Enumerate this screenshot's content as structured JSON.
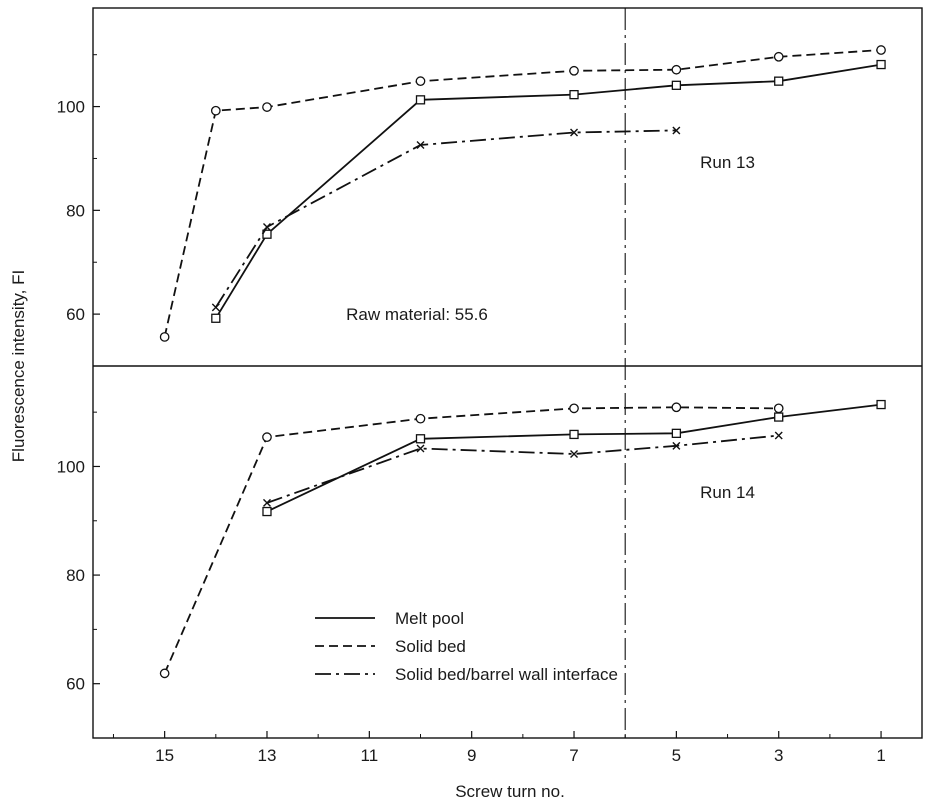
{
  "chart_data": {
    "type": "line",
    "xlabel": "Screw turn no.",
    "ylabel": "Fluorescence intensity, FI",
    "x_reversed": true,
    "xlim": [
      16.4,
      0.2
    ],
    "x_ticks": [
      15,
      13,
      11,
      9,
      7,
      5,
      3,
      1
    ],
    "divider_x": 6,
    "panels": [
      {
        "label": "Run 13",
        "annotation": "Raw material: 55.6",
        "ylim": [
          50,
          119
        ],
        "y_ticks": [
          60,
          80,
          100
        ],
        "series": [
          {
            "legend": "Solid bed",
            "style": "dashed",
            "marker": "circle",
            "points": [
              [
                15,
                55.6
              ],
              [
                14,
                99.2
              ],
              [
                13,
                99.9
              ],
              [
                10,
                104.9
              ],
              [
                7,
                106.9
              ],
              [
                5,
                107.1
              ],
              [
                3,
                109.6
              ],
              [
                1,
                110.9
              ]
            ]
          },
          {
            "legend": "Melt pool",
            "style": "solid",
            "marker": "square",
            "points": [
              [
                14,
                59.2
              ],
              [
                13,
                75.4
              ],
              [
                10,
                101.3
              ],
              [
                7,
                102.3
              ],
              [
                5,
                104.1
              ],
              [
                3,
                104.9
              ],
              [
                1,
                108.1
              ]
            ]
          },
          {
            "legend": "Solid bed/barrel wall interface",
            "style": "dashdot",
            "marker": "x",
            "points": [
              [
                14,
                61.3
              ],
              [
                13,
                76.8
              ],
              [
                10,
                92.6
              ],
              [
                7,
                95.0
              ],
              [
                5,
                95.4
              ]
            ]
          }
        ]
      },
      {
        "label": "Run 14",
        "annotation": "",
        "ylim": [
          50,
          118.5
        ],
        "y_ticks": [
          60,
          80,
          100
        ],
        "series": [
          {
            "legend": "Solid bed",
            "style": "dashed",
            "marker": "circle",
            "points": [
              [
                15,
                61.9
              ],
              [
                13,
                105.4
              ],
              [
                10,
                108.8
              ],
              [
                7,
                110.7
              ],
              [
                5,
                110.9
              ],
              [
                3,
                110.7
              ]
            ]
          },
          {
            "legend": "Melt pool",
            "style": "solid",
            "marker": "square",
            "points": [
              [
                13,
                91.7
              ],
              [
                10,
                105.1
              ],
              [
                7,
                105.9
              ],
              [
                5,
                106.1
              ],
              [
                3,
                109.1
              ],
              [
                1,
                111.4
              ]
            ]
          },
          {
            "legend": "Solid bed/barrel wall interface",
            "style": "dashdot",
            "marker": "x",
            "points": [
              [
                13,
                93.3
              ],
              [
                10,
                103.3
              ],
              [
                7,
                102.3
              ],
              [
                5,
                103.8
              ],
              [
                3,
                105.7
              ]
            ]
          }
        ]
      }
    ],
    "legend": {
      "placement": "bottom-center",
      "entries": [
        {
          "label": "Melt pool",
          "style": "solid"
        },
        {
          "label": "Solid bed",
          "style": "dashed"
        },
        {
          "label": "Solid bed/barrel wall interface",
          "style": "dashdot"
        }
      ]
    }
  }
}
